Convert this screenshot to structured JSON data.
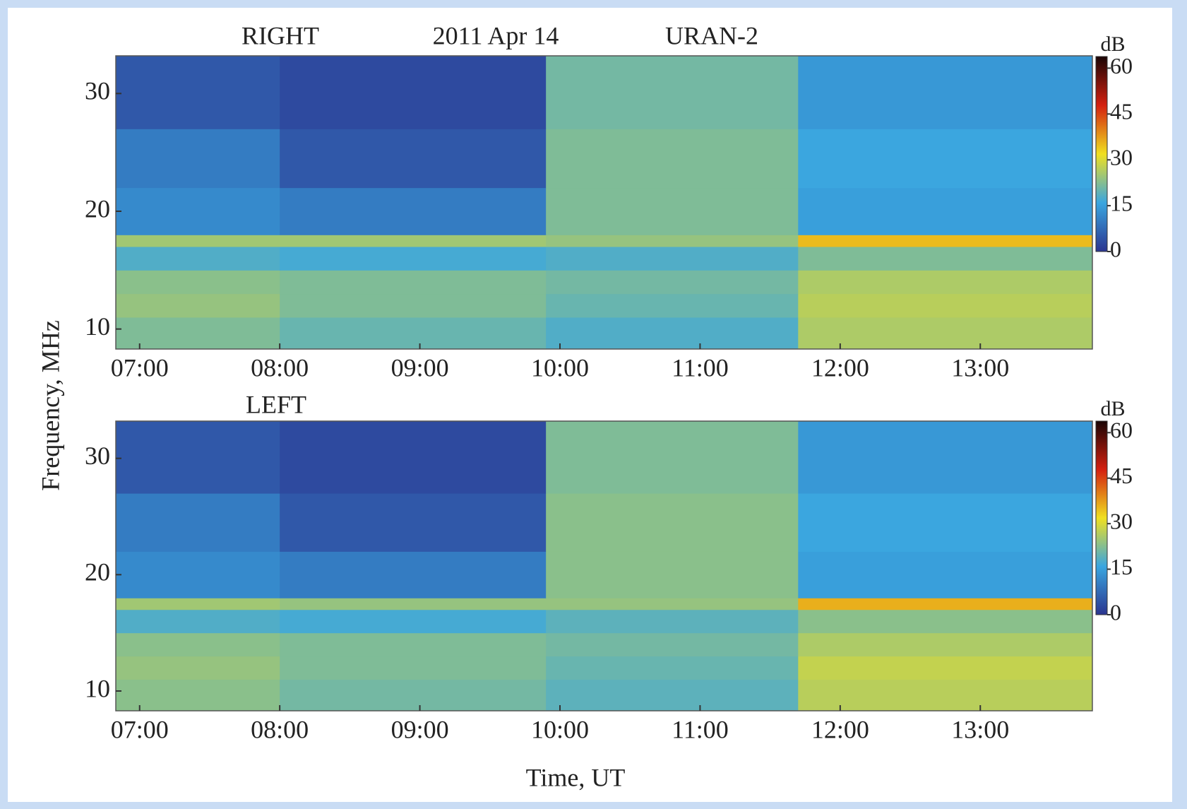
{
  "chart_data": [
    {
      "type": "heatmap",
      "title": "RIGHT",
      "annotations": [
        "2011 Apr 14",
        "URAN-2"
      ],
      "ylabel": "Frequency, MHz",
      "xlim": [
        6.83,
        13.8
      ],
      "xticks": [
        {
          "value": 7,
          "label": "07:00"
        },
        {
          "value": 8,
          "label": "08:00"
        },
        {
          "value": 9,
          "label": "09:00"
        },
        {
          "value": 10,
          "label": "10:00"
        },
        {
          "value": 11,
          "label": "11:00"
        },
        {
          "value": 12,
          "label": "12:00"
        },
        {
          "value": 13,
          "label": "13:00"
        }
      ],
      "ylim": [
        8.3,
        33.2
      ],
      "yticks": [
        10,
        20,
        30
      ],
      "xbins": [
        6.83,
        8,
        9.9,
        11.7,
        13.8
      ],
      "ybins": [
        8.3,
        11,
        13,
        15,
        17,
        18,
        22,
        27,
        33.2
      ],
      "z": [
        [
          22,
          20,
          18,
          26
        ],
        [
          24,
          22,
          20,
          27
        ],
        [
          23,
          22,
          21,
          26
        ],
        [
          18,
          17,
          18,
          22
        ],
        [
          25,
          25,
          24,
          35
        ],
        [
          12,
          10,
          22,
          15
        ],
        [
          10,
          5,
          22,
          16
        ],
        [
          5,
          3,
          21,
          14
        ]
      ],
      "colorbar_label": "dB",
      "zlim": [
        0,
        63.8
      ],
      "zticks": [
        0,
        15,
        30,
        45,
        60
      ],
      "colors": [
        "#2b3590",
        "#3aa6e0",
        "#f0e020",
        "#d42010",
        "#1a0505"
      ]
    },
    {
      "type": "heatmap",
      "title": "LEFT",
      "xlabel": "Time, UT",
      "xlim": [
        6.83,
        13.8
      ],
      "xticks": [
        {
          "value": 7,
          "label": "07:00"
        },
        {
          "value": 8,
          "label": "08:00"
        },
        {
          "value": 9,
          "label": "09:00"
        },
        {
          "value": 10,
          "label": "10:00"
        },
        {
          "value": 11,
          "label": "11:00"
        },
        {
          "value": 12,
          "label": "12:00"
        },
        {
          "value": 13,
          "label": "13:00"
        }
      ],
      "ylim": [
        8.3,
        33.2
      ],
      "yticks": [
        10,
        20,
        30
      ],
      "xbins": [
        6.83,
        8,
        9.9,
        11.7,
        13.8
      ],
      "ybins": [
        8.3,
        11,
        13,
        15,
        17,
        18,
        22,
        27,
        33.2
      ],
      "z": [
        [
          23,
          21,
          19,
          27
        ],
        [
          24,
          22,
          20,
          28
        ],
        [
          23,
          22,
          21,
          26
        ],
        [
          18,
          17,
          19,
          23
        ],
        [
          25,
          24,
          24,
          36
        ],
        [
          12,
          10,
          23,
          15
        ],
        [
          10,
          5,
          23,
          16
        ],
        [
          5,
          3,
          22,
          14
        ]
      ],
      "colorbar_label": "dB",
      "zlim": [
        0,
        63.8
      ],
      "zticks": [
        0,
        15,
        30,
        45,
        60
      ],
      "colors": [
        "#2b3590",
        "#3aa6e0",
        "#f0e020",
        "#d42010",
        "#1a0505"
      ]
    }
  ]
}
